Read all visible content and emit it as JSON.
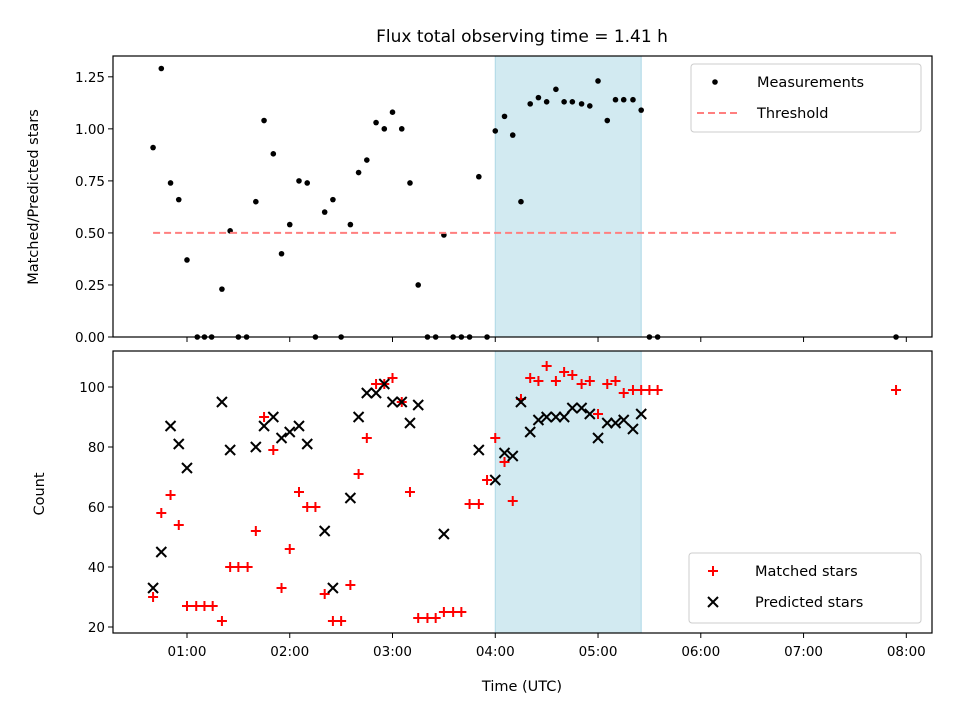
{
  "colors": {
    "span": "#add8e6",
    "threshold": "#ff7f7f",
    "measurement": "#000000",
    "matched": "#ff0000",
    "predicted": "#000000"
  },
  "chart_data": [
    {
      "type": "scatter",
      "title": "Flux total observing time = 1.41 h",
      "xlabel": "",
      "ylabel": "Matched/Predicted stars",
      "xlim": [
        0.28,
        8.25
      ],
      "ylim": [
        0,
        1.35
      ],
      "yticks": [
        0,
        0.25,
        0.5,
        0.75,
        1.0,
        1.25
      ],
      "ytick_labels": [
        "0.00",
        "0.25",
        "0.50",
        "0.75",
        "1.00",
        "1.25"
      ],
      "shaded_span": [
        4.0,
        5.42
      ],
      "legend_position": "upper right",
      "series": [
        {
          "name": "Measurements",
          "marker": "dot",
          "x": [
            0.67,
            0.75,
            0.84,
            0.92,
            1.0,
            1.1,
            1.17,
            1.24,
            1.34,
            1.42,
            1.5,
            1.58,
            1.67,
            1.75,
            1.84,
            1.92,
            2.0,
            2.09,
            2.17,
            2.25,
            2.34,
            2.42,
            2.5,
            2.59,
            2.67,
            2.75,
            2.84,
            2.92,
            3.0,
            3.09,
            3.17,
            3.25,
            3.34,
            3.42,
            3.5,
            3.59,
            3.67,
            3.75,
            3.84,
            3.92,
            4.0,
            4.09,
            4.17,
            4.25,
            4.34,
            4.42,
            4.5,
            4.59,
            4.67,
            4.75,
            4.84,
            4.92,
            5.0,
            5.09,
            5.17,
            5.25,
            5.34,
            5.42,
            5.5,
            5.58,
            7.9
          ],
          "y": [
            0.91,
            1.29,
            0.74,
            0.66,
            0.37,
            0.0,
            0.0,
            0.0,
            0.23,
            0.51,
            0.0,
            0.0,
            0.65,
            1.04,
            0.88,
            0.4,
            0.54,
            0.75,
            0.74,
            0.0,
            0.6,
            0.66,
            0.0,
            0.54,
            0.79,
            0.85,
            1.03,
            1.0,
            1.08,
            1.0,
            0.74,
            0.25,
            0.0,
            0.0,
            0.49,
            0.0,
            0.0,
            0.0,
            0.77,
            0.0,
            0.99,
            1.06,
            0.97,
            0.65,
            1.12,
            1.15,
            1.13,
            1.19,
            1.13,
            1.13,
            1.12,
            1.11,
            1.23,
            1.04,
            1.14,
            1.14,
            1.14,
            1.09,
            0.0,
            0.0,
            0.0
          ]
        },
        {
          "name": "Threshold",
          "marker": "dashed-line",
          "x": [
            0.67,
            7.9
          ],
          "y": [
            0.5,
            0.5
          ]
        }
      ]
    },
    {
      "type": "scatter",
      "title": "",
      "xlabel": "Time (UTC)",
      "ylabel": "Count",
      "xlim": [
        0.28,
        8.25
      ],
      "ylim": [
        18,
        112
      ],
      "yticks": [
        20,
        40,
        60,
        80,
        100
      ],
      "ytick_labels": [
        "20",
        "40",
        "60",
        "80",
        "100"
      ],
      "xticks": [
        1,
        2,
        3,
        4,
        5,
        6,
        7,
        8
      ],
      "xtick_labels": [
        "01:00",
        "02:00",
        "03:00",
        "04:00",
        "05:00",
        "06:00",
        "07:00",
        "08:00"
      ],
      "shaded_span": [
        4.0,
        5.42
      ],
      "legend_position": "lower right",
      "series": [
        {
          "name": "Matched stars",
          "marker": "plus",
          "x": [
            0.67,
            0.75,
            0.84,
            0.92,
            1.0,
            1.09,
            1.17,
            1.25,
            1.34,
            1.42,
            1.5,
            1.59,
            1.67,
            1.75,
            1.84,
            1.92,
            2.0,
            2.09,
            2.17,
            2.25,
            2.34,
            2.42,
            2.5,
            2.59,
            2.67,
            2.75,
            2.84,
            2.92,
            3.0,
            3.09,
            3.17,
            3.25,
            3.34,
            3.42,
            3.5,
            3.59,
            3.67,
            3.75,
            3.84,
            3.92,
            4.0,
            4.09,
            4.17,
            4.25,
            4.34,
            4.42,
            4.5,
            4.59,
            4.67,
            4.75,
            4.84,
            4.92,
            5.0,
            5.09,
            5.17,
            5.25,
            5.34,
            5.42,
            5.5,
            5.58,
            7.9
          ],
          "y": [
            30,
            58,
            64,
            54,
            27,
            27,
            27,
            27,
            22,
            40,
            40,
            40,
            52,
            90,
            79,
            33,
            46,
            65,
            60,
            60,
            31,
            22,
            22,
            34,
            71,
            83,
            101,
            101,
            103,
            95,
            65,
            23,
            23,
            23,
            25,
            25,
            25,
            61,
            61,
            69,
            83,
            75,
            62,
            96,
            103,
            102,
            107,
            102,
            105,
            104,
            101,
            102,
            91,
            101,
            102,
            98,
            99,
            99,
            99,
            99,
            99
          ]
        },
        {
          "name": "Predicted stars",
          "marker": "cross",
          "x": [
            0.67,
            0.75,
            0.84,
            0.92,
            1.0,
            1.34,
            1.42,
            1.67,
            1.75,
            1.84,
            1.92,
            2.0,
            2.09,
            2.17,
            2.34,
            2.42,
            2.59,
            2.67,
            2.75,
            2.84,
            2.92,
            3.0,
            3.09,
            3.17,
            3.25,
            3.5,
            3.84,
            4.0,
            4.09,
            4.17,
            4.25,
            4.34,
            4.42,
            4.5,
            4.59,
            4.67,
            4.75,
            4.84,
            4.92,
            5.0,
            5.09,
            5.17,
            5.25,
            5.34,
            5.42
          ],
          "y": [
            33,
            45,
            87,
            81,
            73,
            95,
            79,
            80,
            87,
            90,
            83,
            85,
            87,
            81,
            52,
            33,
            63,
            90,
            98,
            98,
            101,
            95,
            95,
            88,
            94,
            51,
            79,
            69,
            78,
            77,
            95,
            85,
            89,
            90,
            90,
            90,
            93,
            93,
            91,
            83,
            88,
            88,
            89,
            86,
            91
          ]
        }
      ]
    }
  ]
}
